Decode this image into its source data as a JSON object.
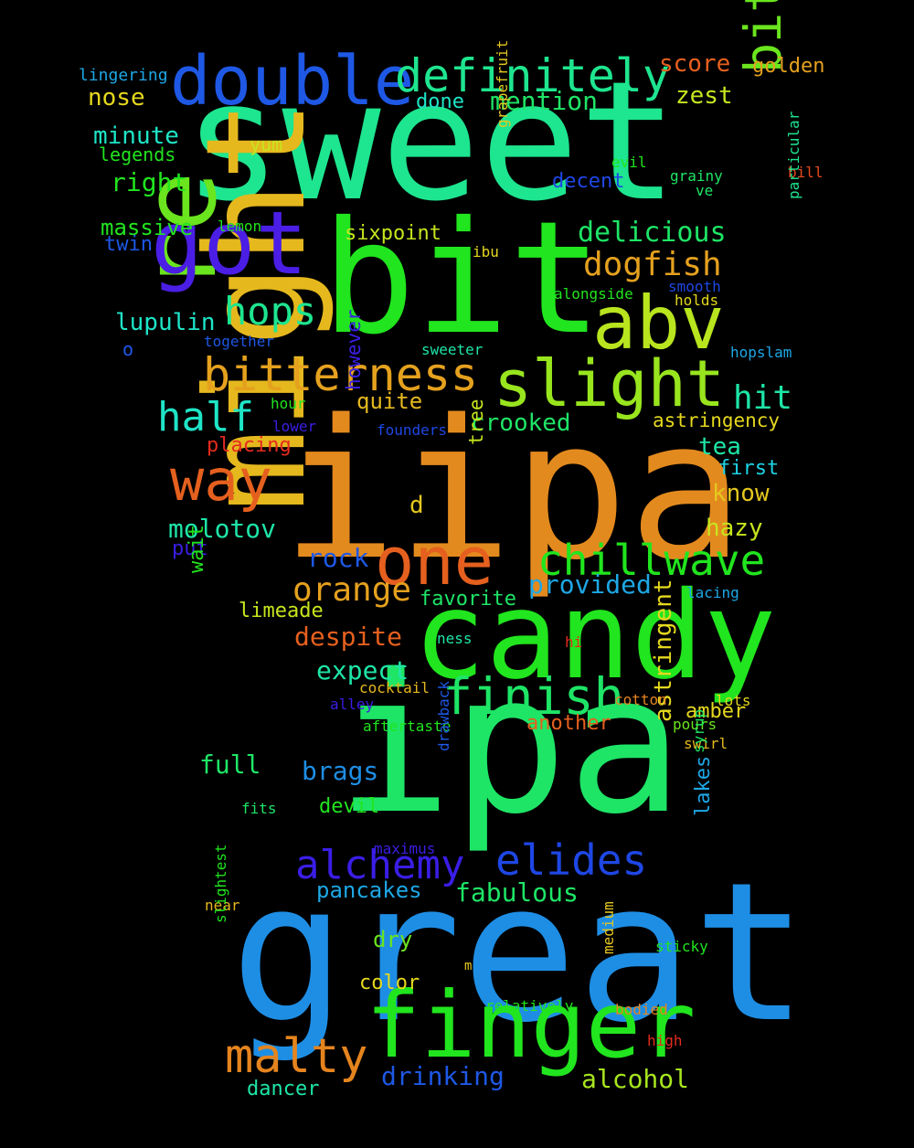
{
  "words": [
    {
      "text": "sweet",
      "color": "#1ee58f"
    },
    {
      "text": "iipa",
      "color": "#e38a1e"
    },
    {
      "text": "ipa",
      "color": "#1ee566"
    },
    {
      "text": "great",
      "color": "#1e8ee5"
    },
    {
      "text": "bit",
      "color": "#21e51e"
    },
    {
      "text": "might",
      "color": "#e5b81e"
    },
    {
      "text": "candy",
      "color": "#21e51e"
    },
    {
      "text": "re",
      "color": "#6ae51e"
    },
    {
      "text": "got",
      "color": "#4b1ee5"
    },
    {
      "text": "finger",
      "color": "#21e51e"
    },
    {
      "text": "double",
      "color": "#1e58e5"
    },
    {
      "text": "abv",
      "color": "#b8e51e"
    },
    {
      "text": "one",
      "color": "#e5601e"
    },
    {
      "text": "slight",
      "color": "#98e51e"
    },
    {
      "text": "bitterness",
      "color": "#e5a11e"
    },
    {
      "text": "definitely",
      "color": "#1ee58f"
    },
    {
      "text": "bitter",
      "color": "#6ae51e"
    },
    {
      "text": "way",
      "color": "#e5601e"
    },
    {
      "text": "chillwave",
      "color": "#21e51e"
    },
    {
      "text": "finish",
      "color": "#1ee566"
    },
    {
      "text": "malty",
      "color": "#e5841e"
    },
    {
      "text": "alchemy",
      "color": "#3a1ee5"
    },
    {
      "text": "elides",
      "color": "#1e47e5"
    },
    {
      "text": "half",
      "color": "#1ee5c7"
    },
    {
      "text": "hops",
      "color": "#1ee58f"
    },
    {
      "text": "orange",
      "color": "#e5a11e"
    },
    {
      "text": "dogfish",
      "color": "#e5a11e"
    },
    {
      "text": "hit",
      "color": "#1ee5a7"
    },
    {
      "text": "delicious",
      "color": "#1ee566"
    },
    {
      "text": "molotov",
      "color": "#1ee5a7"
    },
    {
      "text": "despite",
      "color": "#e5601e"
    },
    {
      "text": "expect",
      "color": "#1ee5a7"
    },
    {
      "text": "provided",
      "color": "#1ea7e5"
    },
    {
      "text": "fabulous",
      "color": "#1ee566"
    },
    {
      "text": "drinking",
      "color": "#1e58e5"
    },
    {
      "text": "alcohol",
      "color": "#a7e51e"
    },
    {
      "text": "brags",
      "color": "#1e8ee5"
    },
    {
      "text": "full",
      "color": "#1ee566"
    },
    {
      "text": "rock",
      "color": "#1e58e5"
    },
    {
      "text": "lupulin",
      "color": "#1ee5c7"
    },
    {
      "text": "crooked",
      "color": "#1ee566"
    },
    {
      "text": "astringent",
      "color": "#e5d81e"
    },
    {
      "text": "pancakes",
      "color": "#1ea7e5"
    },
    {
      "text": "mention",
      "color": "#1ee566"
    },
    {
      "text": "score",
      "color": "#e5601e"
    },
    {
      "text": "nose",
      "color": "#e5d81e"
    },
    {
      "text": "minute",
      "color": "#1ee5c7"
    },
    {
      "text": "right",
      "color": "#21e51e"
    },
    {
      "text": "massive",
      "color": "#21e51e"
    },
    {
      "text": "zest",
      "color": "#c7e51e"
    },
    {
      "text": "quite",
      "color": "#e5b81e"
    },
    {
      "text": "tea",
      "color": "#1ee5a7"
    },
    {
      "text": "know",
      "color": "#e5c71e"
    },
    {
      "text": "hazy",
      "color": "#c7e51e"
    },
    {
      "text": "first",
      "color": "#1ed3e5"
    },
    {
      "text": "favorite",
      "color": "#1ee566"
    },
    {
      "text": "limeade",
      "color": "#c7e51e"
    },
    {
      "text": "another",
      "color": "#e5601e"
    },
    {
      "text": "amber",
      "color": "#e5d81e"
    },
    {
      "text": "lakes",
      "color": "#1ea7e5"
    },
    {
      "text": "golden",
      "color": "#e5a11e"
    },
    {
      "text": "dancer",
      "color": "#1ee5a7"
    },
    {
      "text": "devil",
      "color": "#21e51e"
    },
    {
      "text": "dry",
      "color": "#6ae51e"
    },
    {
      "text": "color",
      "color": "#e5d81e"
    },
    {
      "text": "sixpoint",
      "color": "#c7e51e"
    },
    {
      "text": "astringency",
      "color": "#e5d81e"
    },
    {
      "text": "placing",
      "color": "#e52b1e"
    },
    {
      "text": "however",
      "color": "#3a1ee5"
    },
    {
      "text": "put",
      "color": "#3a1ee5"
    },
    {
      "text": "wait",
      "color": "#21e51e"
    },
    {
      "text": "twin",
      "color": "#1e58e5"
    },
    {
      "text": "done",
      "color": "#1ee5c7"
    },
    {
      "text": "yum",
      "color": "#c7e51e"
    },
    {
      "text": "legends",
      "color": "#21e51e"
    },
    {
      "text": "decent",
      "color": "#1e47e5"
    },
    {
      "text": "tree",
      "color": "#c7e51e"
    },
    {
      "text": "d",
      "color": "#e5c71e"
    },
    {
      "text": "o",
      "color": "#1e58e5"
    },
    {
      "text": "lingering",
      "color": "#1ea7e5"
    },
    {
      "text": "lemon",
      "color": "#21e51e"
    },
    {
      "text": "grapefruit",
      "color": "#e5c71e"
    },
    {
      "text": "ibu",
      "color": "#e5d81e"
    },
    {
      "text": "evil",
      "color": "#21e51e"
    },
    {
      "text": "grainy",
      "color": "#1ee566"
    },
    {
      "text": "ve",
      "color": "#1ee566"
    },
    {
      "text": "bill",
      "color": "#e54b1e"
    },
    {
      "text": "particular",
      "color": "#1ee58f"
    },
    {
      "text": "smooth",
      "color": "#1e47e5"
    },
    {
      "text": "alongside",
      "color": "#21e51e"
    },
    {
      "text": "holds",
      "color": "#e5d81e"
    },
    {
      "text": "together",
      "color": "#1e58e5"
    },
    {
      "text": "sweeter",
      "color": "#1ee5a7"
    },
    {
      "text": "hopslam",
      "color": "#1ea7e5"
    },
    {
      "text": "hour",
      "color": "#21e51e"
    },
    {
      "text": "lower",
      "color": "#3a1ee5"
    },
    {
      "text": "founders",
      "color": "#1e47e5"
    },
    {
      "text": "lacing",
      "color": "#1ea7e5"
    },
    {
      "text": "ness",
      "color": "#1ee5a7"
    },
    {
      "text": "hi",
      "color": "#e52b1e"
    },
    {
      "text": "cocktail",
      "color": "#e5b81e"
    },
    {
      "text": "alley",
      "color": "#3a1ee5"
    },
    {
      "text": "cotton",
      "color": "#e5841e"
    },
    {
      "text": "lots",
      "color": "#e5d81e"
    },
    {
      "text": "aftertaste",
      "color": "#21e51e"
    },
    {
      "text": "pours",
      "color": "#6ae51e"
    },
    {
      "text": "swirl",
      "color": "#e5b81e"
    },
    {
      "text": "syrup",
      "color": "#1ee566"
    },
    {
      "text": "drawback",
      "color": "#1e58e5"
    },
    {
      "text": "fits",
      "color": "#1ee566"
    },
    {
      "text": "maximus",
      "color": "#3a1ee5"
    },
    {
      "text": "near",
      "color": "#e5b81e"
    },
    {
      "text": "slightest",
      "color": "#21e51e"
    },
    {
      "text": "m",
      "color": "#e5c71e"
    },
    {
      "text": "medium",
      "color": "#e5c71e"
    },
    {
      "text": "sticky",
      "color": "#21e51e"
    },
    {
      "text": "relatively",
      "color": "#21e51e"
    },
    {
      "text": "bodied",
      "color": "#e5841e"
    },
    {
      "text": "high",
      "color": "#e52b1e"
    }
  ]
}
